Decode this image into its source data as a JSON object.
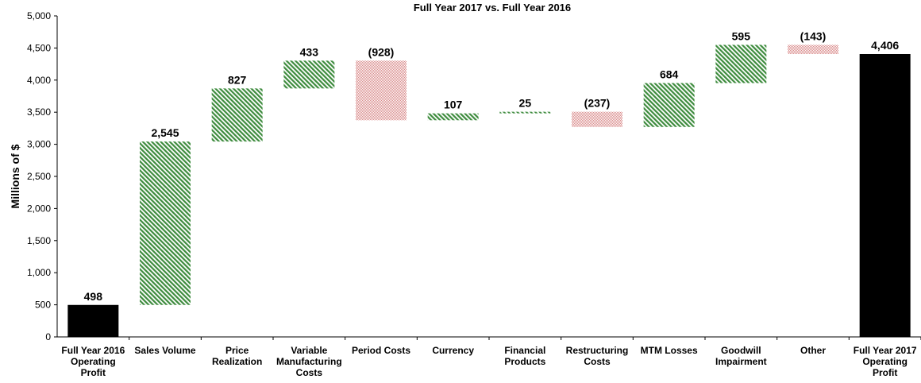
{
  "chart_data": {
    "type": "waterfall",
    "title": "Full Year 2017 vs. Full Year 2016",
    "y_label": "Millions of $",
    "categories": [
      "Full Year 2016 Operating Profit",
      "Sales Volume",
      "Price Realization",
      "Variable Manufacturing Costs",
      "Period Costs",
      "Currency",
      "Financial Products",
      "Restructuring Costs",
      "MTM Losses",
      "Goodwill Impairment",
      "Other",
      "Full Year 2017 Operating Profit"
    ],
    "values": [
      498,
      2545,
      827,
      433,
      -928,
      107,
      25,
      -237,
      684,
      595,
      -143,
      4406
    ],
    "value_labels": [
      "498",
      "2,545",
      "827",
      "433",
      "(928)",
      "107",
      "25",
      "(237)",
      "684",
      "595",
      "(143)",
      "4,406"
    ],
    "total_indices": [
      0,
      11
    ],
    "increase_color": "#3d8b3d",
    "decrease_color": "#d98a8a",
    "total_color": "#000000",
    "ylim": [
      0,
      5000
    ],
    "yticks": [
      0,
      500,
      {
        "value": 1000,
        "label": "1,000"
      },
      {
        "value": 1500,
        "label": "1,500"
      },
      {
        "value": 2000,
        "label": "2,000"
      },
      {
        "value": 2500,
        "label": "2,500"
      },
      {
        "value": 3000,
        "label": "3,000"
      },
      {
        "value": 3500,
        "label": "3,500"
      },
      {
        "value": 4000,
        "label": "4,000"
      },
      {
        "value": 4500,
        "label": "4,500"
      },
      {
        "value": 5000,
        "label": "5,000"
      }
    ]
  }
}
